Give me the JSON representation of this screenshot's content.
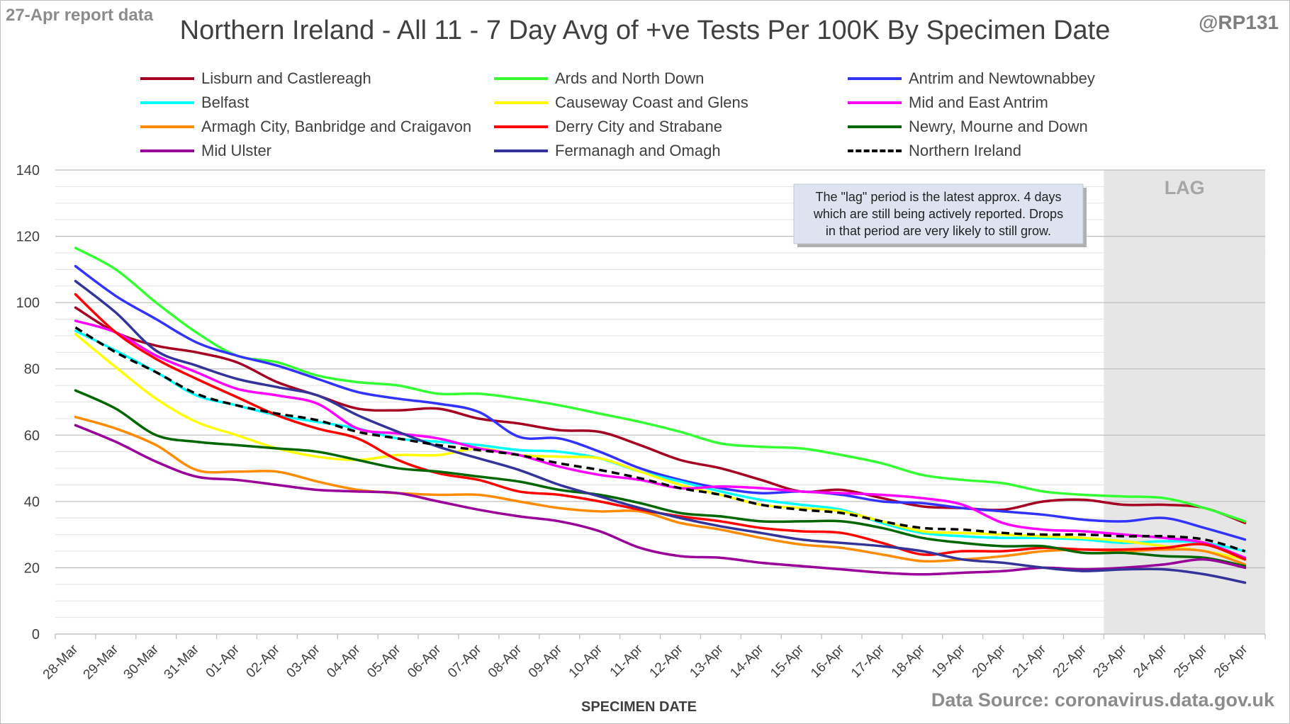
{
  "header": {
    "report_label": "27-Apr report data",
    "handle": "@RP131",
    "title": "Northern Ireland - All 11 - 7 Day Avg of +ve Tests Per 100K By Specimen Date",
    "source": "Data Source: coronavirus.data.gov.uk"
  },
  "annotation": {
    "lag_label": "LAG",
    "note_lines": [
      "The \"lag\" period is the latest approx. 4 days",
      "which are still being actively reported. Drops",
      "in that period are very likely to still grow."
    ]
  },
  "chart_data": {
    "type": "line",
    "title": "Northern Ireland - All 11 - 7 Day Avg of +ve Tests Per 100K By Specimen Date",
    "xlabel": "SPECIMEN DATE",
    "ylabel": "",
    "ylim": [
      0,
      140
    ],
    "yticks": [
      0,
      20,
      40,
      60,
      80,
      100,
      120,
      140
    ],
    "grid": true,
    "legend_position": "top",
    "lag_start": "23-Apr",
    "categories": [
      "28-Mar",
      "29-Mar",
      "30-Mar",
      "31-Mar",
      "01-Apr",
      "02-Apr",
      "03-Apr",
      "04-Apr",
      "05-Apr",
      "06-Apr",
      "07-Apr",
      "08-Apr",
      "09-Apr",
      "10-Apr",
      "11-Apr",
      "12-Apr",
      "13-Apr",
      "14-Apr",
      "15-Apr",
      "16-Apr",
      "17-Apr",
      "18-Apr",
      "19-Apr",
      "20-Apr",
      "21-Apr",
      "22-Apr",
      "23-Apr",
      "24-Apr",
      "25-Apr",
      "26-Apr"
    ],
    "series": [
      {
        "name": "Lisburn and Castlereagh",
        "color": "#a50021",
        "dash": false,
        "values": [
          98.5,
          91,
          87,
          85,
          82,
          76,
          72,
          68,
          67.5,
          68,
          65,
          63.5,
          61.5,
          61,
          57,
          52.5,
          50,
          46.5,
          43,
          43.5,
          41,
          38.5,
          38,
          37.5,
          40,
          40.5,
          39,
          39,
          38,
          33.5
        ]
      },
      {
        "name": "Ards and North Down",
        "color": "#33ff33",
        "dash": false,
        "values": [
          116.5,
          110,
          100,
          91,
          84,
          82,
          78,
          76,
          75,
          72.5,
          72.5,
          71,
          69,
          66.5,
          64,
          61,
          57.5,
          56.5,
          56,
          54,
          51.5,
          48,
          46.5,
          45.5,
          43,
          42,
          41.5,
          41,
          38,
          34
        ]
      },
      {
        "name": "Antrim and Newtownabbey",
        "color": "#3333ff",
        "dash": false,
        "values": [
          111,
          102,
          95,
          88,
          84,
          81,
          77,
          73,
          71,
          69.5,
          67,
          59.5,
          59,
          55,
          50,
          46.5,
          44,
          42.5,
          43,
          42,
          40,
          39.5,
          38,
          37,
          36,
          34.5,
          34,
          35,
          32,
          28.5
        ]
      },
      {
        "name": "Belfast",
        "color": "#00ffff",
        "dash": false,
        "values": [
          91.5,
          85.5,
          79,
          72,
          69,
          66,
          64,
          62,
          59,
          58,
          57,
          55.5,
          55,
          53,
          49,
          46,
          43,
          40.5,
          39,
          37.5,
          33.5,
          30.5,
          29.5,
          29,
          29,
          28.5,
          27.5,
          28,
          27.5,
          25
        ]
      },
      {
        "name": "Causeway Coast and Glens",
        "color": "#ffff00",
        "dash": false,
        "values": [
          90.5,
          80.5,
          71,
          64,
          60,
          56,
          53.5,
          52.5,
          54,
          54,
          56,
          54,
          53.5,
          53,
          49,
          45,
          42,
          39,
          38,
          37,
          34,
          31,
          30.5,
          30,
          29.5,
          29,
          28,
          26.5,
          25,
          22.5
        ]
      },
      {
        "name": "Mid and East Antrim",
        "color": "#ff00ff",
        "dash": false,
        "values": [
          94.5,
          91,
          84,
          79,
          74,
          72,
          69.5,
          62,
          60.5,
          59,
          56,
          54,
          50.5,
          48,
          46.5,
          44,
          44.5,
          44,
          43,
          42.5,
          42,
          41,
          39,
          33.5,
          31.5,
          31,
          30,
          29,
          27.5,
          23
        ]
      },
      {
        "name": "Armagh City, Banbridge and Craigavon",
        "color": "#ff8c00",
        "dash": false,
        "values": [
          65.5,
          62,
          57,
          49.5,
          49,
          49,
          46,
          43.5,
          42.5,
          42,
          42,
          40,
          38,
          37,
          37,
          33.5,
          31.5,
          29,
          27,
          26,
          24,
          22,
          22.5,
          23.5,
          25,
          25.5,
          25,
          25.5,
          25,
          21
        ]
      },
      {
        "name": "Derry City and Strabane",
        "color": "#ff0000",
        "dash": false,
        "values": [
          102.5,
          91,
          83,
          77,
          71.5,
          66,
          62,
          59,
          52.5,
          48.5,
          46.5,
          43,
          42,
          40,
          37.5,
          35.5,
          34,
          32,
          31,
          30.5,
          27.5,
          24,
          25,
          25,
          26,
          25.5,
          25.5,
          26,
          27,
          22.5
        ]
      },
      {
        "name": "Newry, Mourne and Down",
        "color": "#006600",
        "dash": false,
        "values": [
          73.5,
          68,
          60,
          58,
          57,
          56,
          55,
          52.5,
          50,
          49,
          47.5,
          46,
          43.5,
          42,
          39.5,
          36.5,
          35.5,
          34,
          34,
          34,
          32,
          29,
          27.5,
          26.5,
          26.5,
          24.5,
          24.5,
          23.5,
          23,
          20.5
        ]
      },
      {
        "name": "Mid Ulster",
        "color": "#990099",
        "dash": false,
        "values": [
          63,
          58,
          52,
          47.5,
          46.5,
          45,
          43.5,
          43,
          42.5,
          40,
          37.5,
          35.5,
          34,
          31,
          26,
          23.5,
          23,
          21.5,
          20.5,
          19.5,
          18.5,
          18,
          18.5,
          19,
          20,
          19.5,
          20,
          21,
          22.5,
          20
        ]
      },
      {
        "name": "Fermanagh and Omagh",
        "color": "#333399",
        "dash": false,
        "values": [
          106.5,
          97,
          85.5,
          81,
          77,
          74.5,
          72,
          66,
          61,
          56.5,
          53,
          49.5,
          45,
          41.5,
          38,
          35,
          32.5,
          30.5,
          28.5,
          27.5,
          26.5,
          25,
          22.5,
          21.5,
          20,
          19,
          19.5,
          19.5,
          18,
          15.5
        ]
      },
      {
        "name": "Northern Ireland",
        "color": "#000000",
        "dash": true,
        "values": [
          92.5,
          85,
          79,
          72.5,
          69,
          66.5,
          64.5,
          61,
          59,
          57,
          55.5,
          54,
          51.5,
          49.5,
          47,
          44,
          42,
          39,
          37.5,
          36.5,
          34,
          32,
          31.5,
          30.5,
          30,
          30,
          29.5,
          29.5,
          28.5,
          25
        ]
      }
    ]
  }
}
